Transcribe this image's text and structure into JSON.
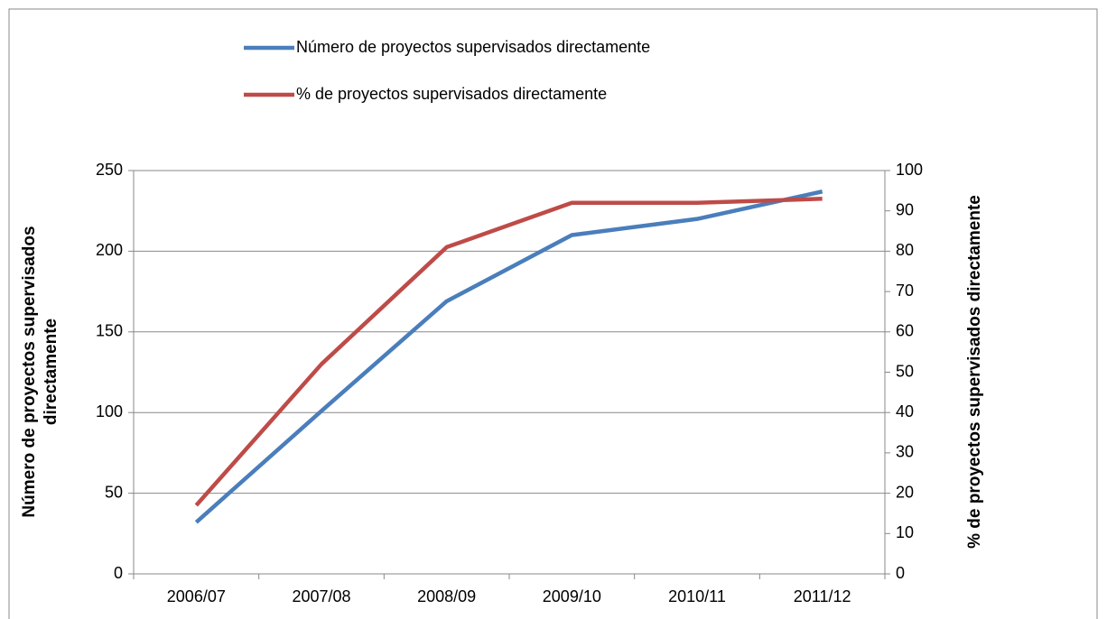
{
  "chart_data": {
    "type": "line",
    "categories": [
      "2006/07",
      "2007/08",
      "2008/09",
      "2009/10",
      "2010/11",
      "2011/12"
    ],
    "series": [
      {
        "name": "Número de proyectos supervisados directamente",
        "color": "#4a7ebb",
        "values": [
          32,
          101,
          169,
          210,
          220,
          237
        ]
      },
      {
        "name": "% de proyectos supervisados directamente",
        "color": "#be4b48",
        "axis": "y2",
        "values": [
          17,
          52,
          81,
          92,
          92,
          93
        ]
      }
    ],
    "y_label": "Número de proyectos supervisados directamente",
    "y2_label": "% de proyectos supervisados directamente",
    "ylim": [
      0,
      250
    ],
    "yticks": [
      0,
      50,
      100,
      150,
      200,
      250
    ],
    "y2lim": [
      0,
      100
    ],
    "y2ticks": [
      0,
      10,
      20,
      30,
      40,
      50,
      60,
      70,
      80,
      90,
      100
    ],
    "grid": true,
    "legend": "top"
  }
}
